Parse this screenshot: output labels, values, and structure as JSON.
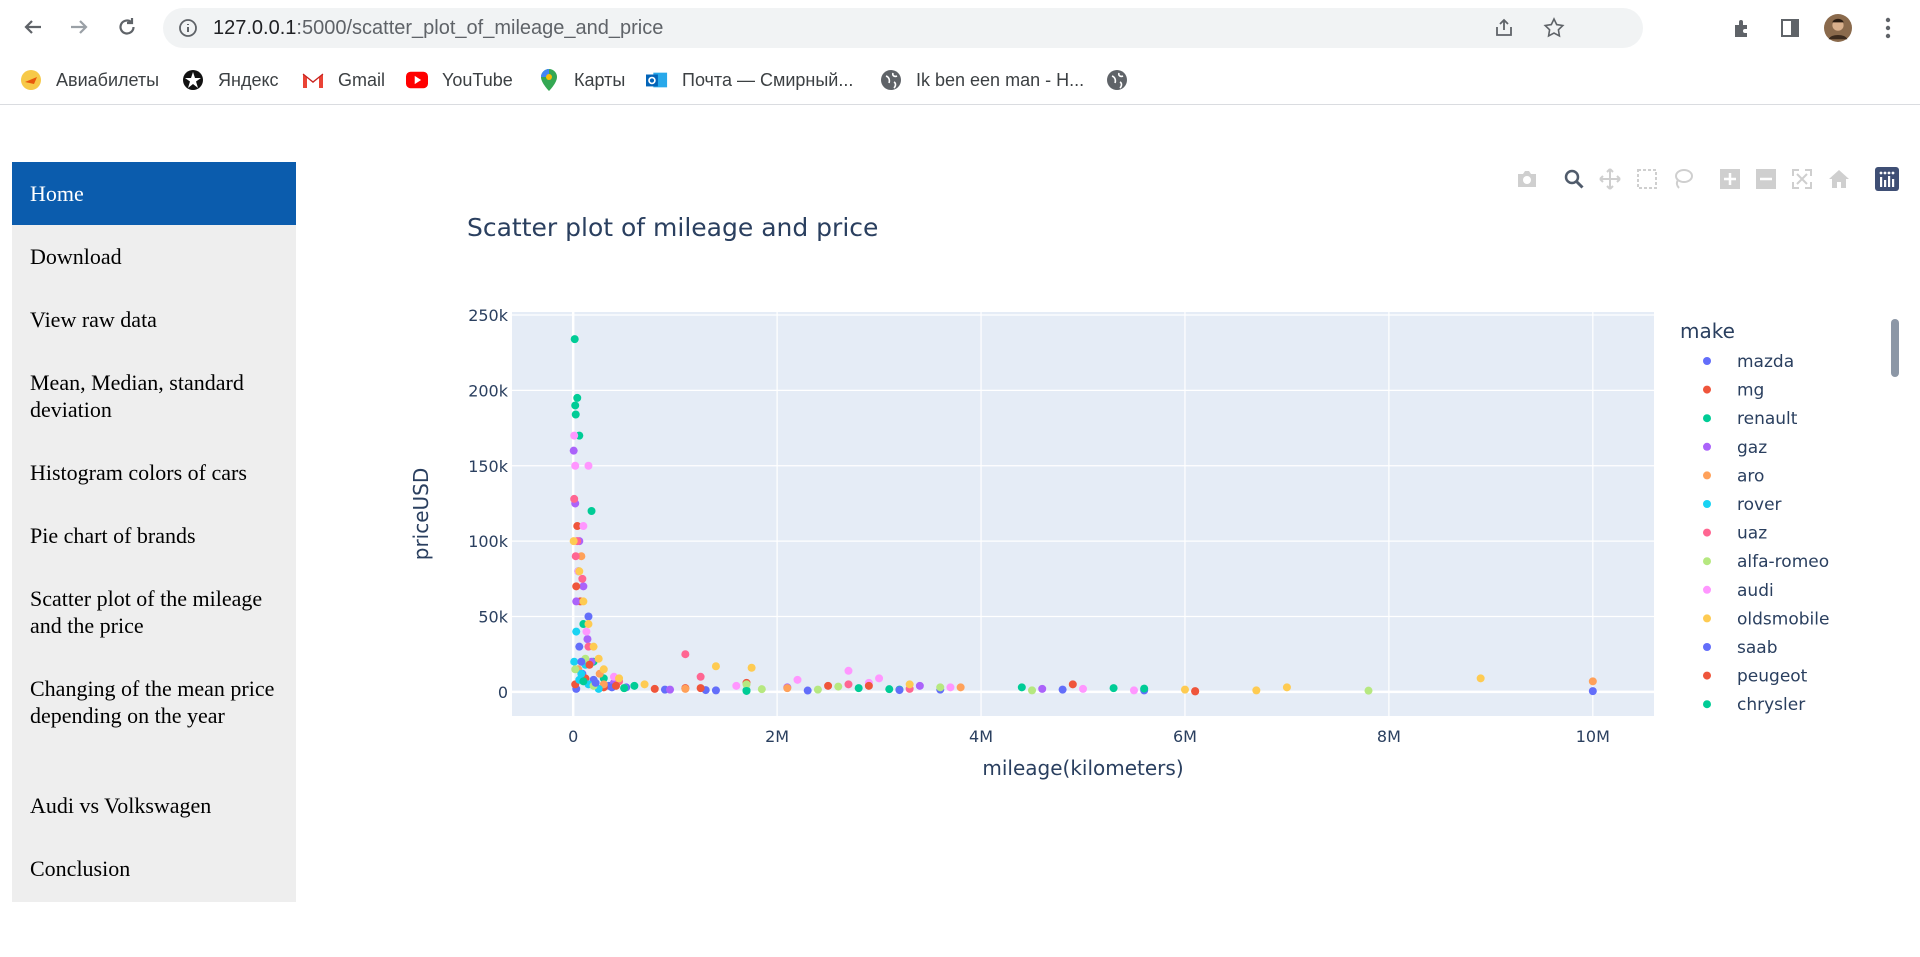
{
  "browser": {
    "url_host": "127.0.0.1",
    "url_rest": ":5000/scatter_plot_of_mileage_and_price",
    "bookmarks": [
      {
        "label": "Авиабилеты",
        "icon": "flight-ticket-icon"
      },
      {
        "label": "Яндекс",
        "icon": "yandex-icon"
      },
      {
        "label": "Gmail",
        "icon": "gmail-icon"
      },
      {
        "label": "YouTube",
        "icon": "youtube-icon"
      },
      {
        "label": "Карты",
        "icon": "maps-pin-icon"
      },
      {
        "label": "Почта — Смирный...",
        "icon": "outlook-icon"
      },
      {
        "label": "Ik ben een man - H...",
        "icon": "globe-icon"
      },
      {
        "label": "",
        "icon": "globe-icon"
      }
    ]
  },
  "sidebar": {
    "items": [
      {
        "label": "Home",
        "active": true
      },
      {
        "label": "Download"
      },
      {
        "label": "View raw data"
      },
      {
        "label": "Mean, Median, standard deviation"
      },
      {
        "label": "Histogram colors of cars"
      },
      {
        "label": "Pie chart of brands"
      },
      {
        "label": "Scatter plot of the mileage and the price"
      },
      {
        "label": "Changing of the mean price depending on the year"
      },
      {
        "label": "Audi vs Volkswagen"
      },
      {
        "label": "Conclusion"
      }
    ]
  },
  "chart_data": {
    "type": "scatter",
    "title": "Scatter plot of mileage and price",
    "xlabel": "mileage(kilometers)",
    "ylabel": "priceUSD",
    "xlim": [
      -600000,
      10600000
    ],
    "ylim": [
      -16000,
      252000
    ],
    "xticks": [
      0,
      2000000,
      4000000,
      6000000,
      8000000,
      10000000
    ],
    "xtick_labels": [
      "0",
      "2M",
      "4M",
      "6M",
      "8M",
      "10M"
    ],
    "yticks": [
      0,
      50000,
      100000,
      150000,
      200000,
      250000
    ],
    "ytick_labels": [
      "0",
      "50k",
      "100k",
      "150k",
      "200k",
      "250k"
    ],
    "grid": true,
    "legend_title": "make",
    "legend_position": "right",
    "series": [
      {
        "name": "mazda",
        "color": "#636efa",
        "points": [
          [
            30000,
            2000
          ],
          [
            90000,
            12000
          ],
          [
            200000,
            8000
          ],
          [
            350000,
            4000
          ],
          [
            520000,
            3000
          ],
          [
            900000,
            1500
          ],
          [
            1300000,
            1200
          ],
          [
            2300000,
            900
          ],
          [
            3600000,
            1500
          ],
          [
            5600000,
            1000
          ],
          [
            10000000,
            500
          ],
          [
            150000,
            50000
          ],
          [
            60000,
            30000
          ]
        ]
      },
      {
        "name": "mg",
        "color": "#ef553b",
        "points": [
          [
            20000,
            5000
          ],
          [
            120000,
            9000
          ],
          [
            300000,
            3000
          ],
          [
            800000,
            2000
          ],
          [
            1100000,
            2500
          ],
          [
            1700000,
            6000
          ],
          [
            2500000,
            4000
          ],
          [
            4900000,
            5000
          ],
          [
            6100000,
            300
          ],
          [
            40000,
            110000
          ],
          [
            70000,
            60000
          ]
        ]
      },
      {
        "name": "renault",
        "color": "#00cc96",
        "points": [
          [
            15000,
            234000
          ],
          [
            20000,
            190000
          ],
          [
            40000,
            195000
          ],
          [
            25000,
            184000
          ],
          [
            60000,
            170000
          ],
          [
            180000,
            120000
          ],
          [
            50000,
            80000
          ],
          [
            100000,
            45000
          ],
          [
            200000,
            20000
          ],
          [
            600000,
            4000
          ],
          [
            1700000,
            1000
          ],
          [
            2800000,
            2500
          ],
          [
            3200000,
            1500
          ],
          [
            4400000,
            3000
          ],
          [
            5300000,
            2500
          ],
          [
            300000,
            9000
          ]
        ]
      },
      {
        "name": "gaz",
        "color": "#ab63fa",
        "points": [
          [
            5000,
            160000
          ],
          [
            20000,
            125000
          ],
          [
            60000,
            100000
          ],
          [
            100000,
            70000
          ],
          [
            30000,
            60000
          ],
          [
            180000,
            20000
          ],
          [
            400000,
            6000
          ],
          [
            950000,
            1500
          ],
          [
            2100000,
            3000
          ],
          [
            3400000,
            4000
          ],
          [
            4600000,
            2000
          ],
          [
            140000,
            35000
          ]
        ]
      },
      {
        "name": "aro",
        "color": "#ffa15a",
        "points": [
          [
            50000,
            15000
          ],
          [
            300000,
            5000
          ],
          [
            1100000,
            2000
          ],
          [
            2100000,
            2500
          ],
          [
            3800000,
            3000
          ],
          [
            10000000,
            7000
          ],
          [
            80000,
            90000
          ],
          [
            260000,
            12000
          ]
        ]
      },
      {
        "name": "rover",
        "color": "#19d3f3",
        "points": [
          [
            10000,
            20000
          ],
          [
            80000,
            12000
          ],
          [
            150000,
            5000
          ],
          [
            250000,
            2000
          ],
          [
            30000,
            40000
          ],
          [
            60000,
            8000
          ],
          [
            120000,
            18000
          ]
        ]
      },
      {
        "name": "uaz",
        "color": "#ff6692",
        "points": [
          [
            10000,
            128000
          ],
          [
            40000,
            100000
          ],
          [
            90000,
            75000
          ],
          [
            150000,
            30000
          ],
          [
            450000,
            7000
          ],
          [
            1100000,
            25000
          ],
          [
            1250000,
            10000
          ],
          [
            3300000,
            2000
          ],
          [
            2700000,
            5000
          ],
          [
            25000,
            90000
          ]
        ]
      },
      {
        "name": "alfa-romeo",
        "color": "#b6e880",
        "points": [
          [
            20000,
            15000
          ],
          [
            200000,
            4000
          ],
          [
            500000,
            2500
          ],
          [
            1700000,
            5000
          ],
          [
            2400000,
            1500
          ],
          [
            3600000,
            3000
          ],
          [
            4500000,
            1000
          ],
          [
            7800000,
            800
          ],
          [
            2600000,
            3500
          ],
          [
            1850000,
            1800
          ],
          [
            120000,
            22000
          ]
        ]
      },
      {
        "name": "audi",
        "color": "#ff97ff",
        "points": [
          [
            10000,
            170000
          ],
          [
            20000,
            150000
          ],
          [
            150000,
            150000
          ],
          [
            100000,
            110000
          ],
          [
            50000,
            80000
          ],
          [
            130000,
            40000
          ],
          [
            400000,
            10000
          ],
          [
            2200000,
            8000
          ],
          [
            2700000,
            14000
          ],
          [
            3000000,
            9000
          ],
          [
            3700000,
            3000
          ],
          [
            5000000,
            2000
          ],
          [
            5500000,
            1000
          ],
          [
            1600000,
            4000
          ],
          [
            2900000,
            6000
          ]
        ]
      },
      {
        "name": "oldsmobile",
        "color": "#fecb52",
        "points": [
          [
            5000,
            100000
          ],
          [
            60000,
            80000
          ],
          [
            100000,
            60000
          ],
          [
            200000,
            30000
          ],
          [
            300000,
            15000
          ],
          [
            700000,
            5000
          ],
          [
            1400000,
            17000
          ],
          [
            1750000,
            16000
          ],
          [
            3300000,
            5000
          ],
          [
            6000000,
            1500
          ],
          [
            6700000,
            1000
          ],
          [
            7000000,
            3000
          ],
          [
            8900000,
            9000
          ],
          [
            150000,
            45000
          ],
          [
            250000,
            22000
          ],
          [
            450000,
            9000
          ]
        ]
      },
      {
        "name": "saab",
        "color": "#636efa",
        "points": [
          [
            80000,
            20000
          ],
          [
            220000,
            6000
          ],
          [
            380000,
            3000
          ],
          [
            1400000,
            1000
          ],
          [
            3200000,
            1200
          ],
          [
            4800000,
            1500
          ]
        ]
      },
      {
        "name": "peugeot",
        "color": "#ef553b",
        "points": [
          [
            30000,
            70000
          ],
          [
            160000,
            18000
          ],
          [
            420000,
            4000
          ],
          [
            1250000,
            2500
          ],
          [
            2900000,
            4000
          ],
          [
            6100000,
            500
          ]
        ]
      },
      {
        "name": "chrysler",
        "color": "#00cc96",
        "points": [
          [
            100000,
            7000
          ],
          [
            500000,
            2500
          ],
          [
            1700000,
            600
          ],
          [
            3100000,
            1800
          ],
          [
            5600000,
            2200
          ]
        ]
      }
    ]
  }
}
